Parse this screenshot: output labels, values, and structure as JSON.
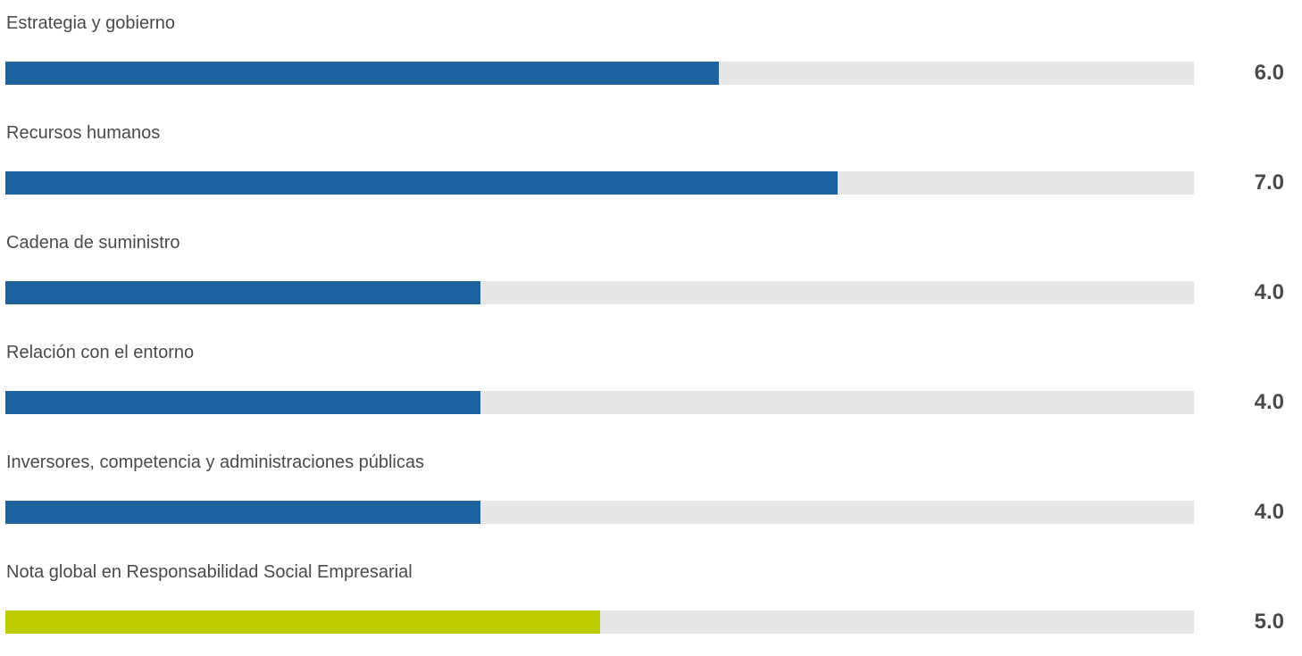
{
  "chart_data": {
    "type": "bar",
    "orientation": "horizontal",
    "categories": [
      "Estrategia y gobierno",
      "Recursos humanos",
      "Cadena de suministro",
      "Relación con el entorno",
      "Inversores, competencia y administraciones públicas",
      "Nota global en Responsabilidad Social Empresarial"
    ],
    "values": [
      6.0,
      7.0,
      4.0,
      4.0,
      4.0,
      5.0
    ],
    "value_labels": [
      "6.0",
      "7.0",
      "4.0",
      "4.0",
      "4.0",
      "5.0"
    ],
    "xlim": [
      0,
      10
    ],
    "title": "",
    "xlabel": "",
    "ylabel": "",
    "grid": false,
    "colors": {
      "bar": "#1d63a0",
      "highlight_bar": "#bccb00",
      "track": "#e6e6e6",
      "text": "#4a4a4a"
    },
    "highlight_index": 5
  }
}
